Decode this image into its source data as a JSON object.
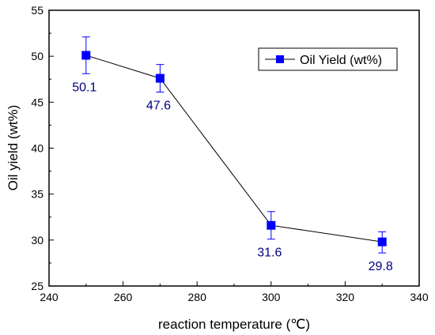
{
  "chart_data": {
    "type": "line",
    "title": "",
    "xlabel": "reaction temperature (℃)",
    "ylabel": "Oil yield (wt%)",
    "xlim": [
      240,
      340
    ],
    "ylim": [
      25,
      55
    ],
    "xticks": [
      240,
      260,
      280,
      300,
      320,
      340
    ],
    "yticks": [
      25,
      30,
      35,
      40,
      45,
      50,
      55
    ],
    "legend_position": "top-right",
    "grid": false,
    "series": [
      {
        "name": "Oil Yield (wt%)",
        "color": "#0000ff",
        "line_color": "#000000",
        "marker": "square",
        "x": [
          250,
          270,
          300,
          330
        ],
        "y": [
          50.1,
          47.6,
          31.6,
          29.8
        ],
        "error_low": [
          48.1,
          46.1,
          30.1,
          28.6
        ],
        "error_high": [
          52.1,
          49.1,
          33.1,
          30.9
        ],
        "labels": [
          "50.1",
          "47.6",
          "31.6",
          "29.8"
        ],
        "label_color": "#000080"
      }
    ]
  }
}
